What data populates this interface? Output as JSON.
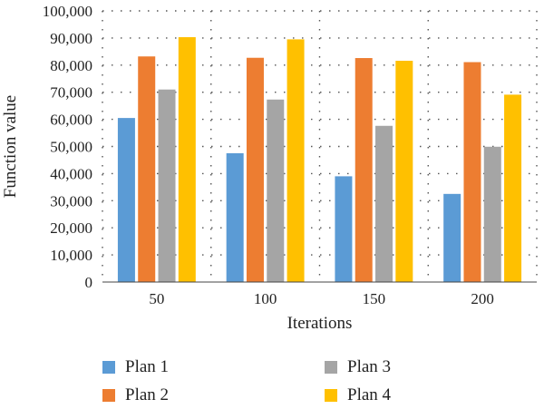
{
  "chart_data": {
    "type": "bar",
    "title": "",
    "xlabel": "Iterations",
    "ylabel": "Function value",
    "categories": [
      "50",
      "100",
      "150",
      "200"
    ],
    "ylim": [
      0,
      100000
    ],
    "yticks": [
      0,
      10000,
      20000,
      30000,
      40000,
      50000,
      60000,
      70000,
      80000,
      90000,
      100000
    ],
    "ytick_labels": [
      "0",
      "10,000",
      "20,000",
      "30,000",
      "40,000",
      "50,000",
      "60,000",
      "70,000",
      "80,000",
      "90,000",
      "100,000"
    ],
    "grid": "dotted",
    "legend_position": "bottom",
    "series": [
      {
        "name": "Plan 1",
        "color": "#5b9bd5",
        "values": [
          60500,
          47500,
          39000,
          32500
        ]
      },
      {
        "name": "Plan 2",
        "color": "#ed7d31",
        "values": [
          83200,
          82700,
          82600,
          81100
        ]
      },
      {
        "name": "Plan 3",
        "color": "#a5a5a5",
        "values": [
          71000,
          67300,
          57600,
          49900
        ]
      },
      {
        "name": "Plan 4",
        "color": "#ffc000",
        "values": [
          90300,
          89500,
          81600,
          69100
        ]
      }
    ]
  }
}
